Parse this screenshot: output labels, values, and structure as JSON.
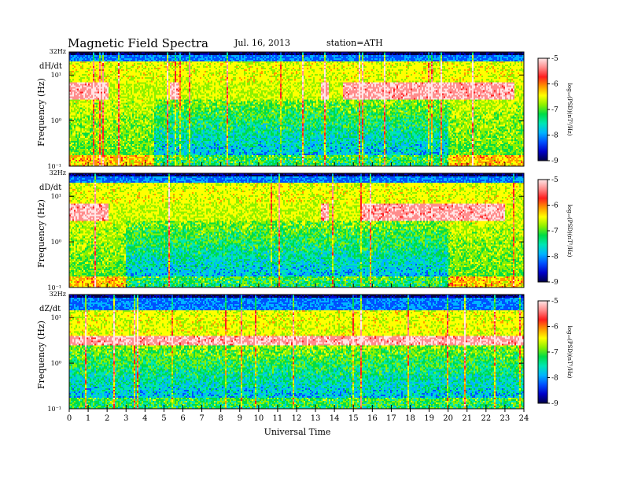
{
  "header": {
    "title": "Magnetic  Field  Spectra",
    "date": "Jul.  16, 2013",
    "station": "station=ATH"
  },
  "chart_data": [
    {
      "type": "heatmap",
      "component": "dH/dt",
      "ylabel": "Frequency  (Hz)",
      "ytick_top": "32Hz",
      "yticks": [
        "10¹",
        "10⁰",
        "10⁻¹"
      ],
      "yscale": "log",
      "ylim": [
        0.1,
        32
      ],
      "xlim": [
        0,
        24
      ],
      "colorbar": {
        "label": "log₁₀(PSD)(nT²/Hz)",
        "ticks": [
          "-5",
          "-6",
          "-7",
          "-8",
          "-9"
        ],
        "range": [
          -9,
          -5
        ]
      },
      "features": {
        "band_top_hz": [
          20,
          32
        ],
        "strong_band_hz": [
          3,
          7
        ],
        "strong_band_hours": [
          [
            0,
            2
          ],
          [
            5.3,
            5.8
          ],
          [
            13.3,
            13.7
          ],
          [
            14.5,
            23.5
          ]
        ],
        "quiet_floor_hours": [
          4.5,
          20
        ]
      }
    },
    {
      "type": "heatmap",
      "component": "dD/dt",
      "ylabel": "Frequency  (Hz)",
      "ytick_top": "32Hz",
      "yticks": [
        "10¹",
        "10⁰",
        "10⁻¹"
      ],
      "yscale": "log",
      "ylim": [
        0.1,
        32
      ],
      "xlim": [
        0,
        24
      ],
      "colorbar": {
        "label": "log₁₀(PSD)(nT²/Hz)",
        "ticks": [
          "-5",
          "-6",
          "-7",
          "-8",
          "-9"
        ],
        "range": [
          -9,
          -5
        ]
      },
      "features": {
        "band_top_hz": [
          20,
          32
        ],
        "strong_band_hz": [
          3,
          7
        ],
        "strong_band_hours": [
          [
            0,
            2
          ],
          [
            13.3,
            13.7
          ],
          [
            15.5,
            23
          ]
        ],
        "quiet_floor_hours": [
          3,
          20
        ]
      }
    },
    {
      "type": "heatmap",
      "component": "dZ/dt",
      "ylabel": "Frequency  (Hz)",
      "ytick_top": "32Hz",
      "yticks": [
        "10¹",
        "10⁰",
        "10⁻¹"
      ],
      "yscale": "log",
      "ylim": [
        0.1,
        32
      ],
      "xlim": [
        0,
        24
      ],
      "colorbar": {
        "label": "log₁₀(PSD)(nT²/Hz)",
        "ticks": [
          "-5",
          "-6",
          "-7",
          "-8",
          "-9"
        ],
        "range": [
          -9,
          -5
        ]
      },
      "features": {
        "band_top_hz": [
          15,
          32
        ],
        "strong_band_hz": [
          2.5,
          4
        ],
        "strong_band_hours": [
          [
            0,
            24
          ]
        ],
        "quiet_floor_hours": [
          0,
          24
        ]
      }
    }
  ],
  "x_axis": {
    "label": "Universal  Time",
    "ticks": [
      "0",
      "1",
      "2",
      "3",
      "4",
      "5",
      "6",
      "7",
      "8",
      "9",
      "10",
      "11",
      "12",
      "13",
      "14",
      "15",
      "16",
      "17",
      "18",
      "19",
      "20",
      "21",
      "22",
      "23",
      "24"
    ]
  },
  "colors": {
    "colormap": [
      "#000046",
      "#0000c8",
      "#0050ff",
      "#00b4ff",
      "#00e6b4",
      "#00dc46",
      "#8cf000",
      "#ffff00",
      "#ff9600",
      "#ff1e1e",
      "#ff8c8c",
      "#ffe6e6"
    ]
  }
}
